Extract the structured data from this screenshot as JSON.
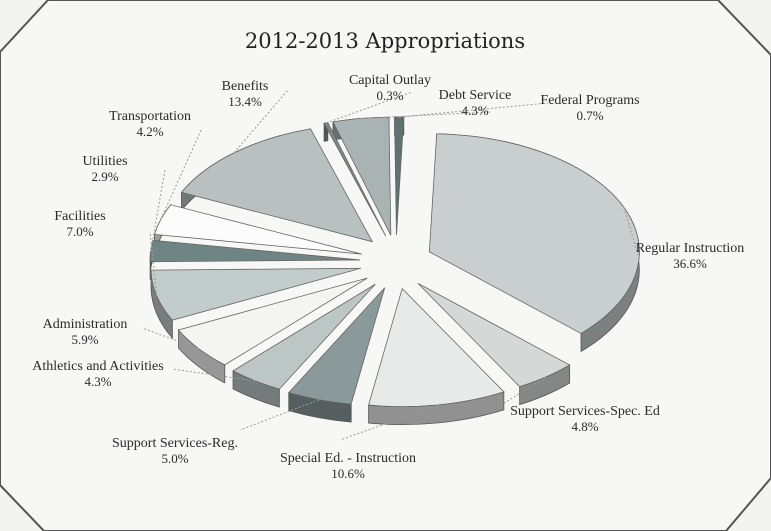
{
  "chart_data": {
    "type": "pie",
    "title": "2012-2013 Appropriations",
    "slices": [
      {
        "label": "Regular Instruction",
        "value": 36.6,
        "display": "36.6%",
        "color": "#c9cfcf"
      },
      {
        "label": "Support Services-Spec. Ed",
        "value": 4.8,
        "display": "4.8%",
        "color": "#d6d8d8"
      },
      {
        "label": "Special Ed. - Instruction",
        "value": 10.6,
        "display": "10.6%",
        "color": "#e8eae9"
      },
      {
        "label": "Support Services-Reg.",
        "value": 5.0,
        "display": "5.0%",
        "color": "#8a9a9a"
      },
      {
        "label": "Athletics and Activities",
        "value": 4.3,
        "display": "4.3%",
        "color": "#bcc6c5"
      },
      {
        "label": "Administration",
        "value": 5.9,
        "display": "5.9%",
        "color": "#f4f4f3"
      },
      {
        "label": "Facilities",
        "value": 7.0,
        "display": "7.0%",
        "color": "#c2cccb"
      },
      {
        "label": "Utilities",
        "value": 2.9,
        "display": "2.9%",
        "color": "#6f8584"
      },
      {
        "label": "Transportation",
        "value": 4.2,
        "display": "4.2%",
        "color": "#fbfbfb"
      },
      {
        "label": "Benefits",
        "value": 13.4,
        "display": "13.4%",
        "color": "#b8c0c0"
      },
      {
        "label": "Capital Outlay",
        "value": 0.3,
        "display": "0.3%",
        "color": "#7a8a8a"
      },
      {
        "label": "Debt Service",
        "value": 4.3,
        "display": "4.3%",
        "color": "#aab3b3"
      },
      {
        "label": "Federal Programs",
        "value": 0.7,
        "display": "0.7%",
        "color": "#5e7272"
      }
    ]
  }
}
